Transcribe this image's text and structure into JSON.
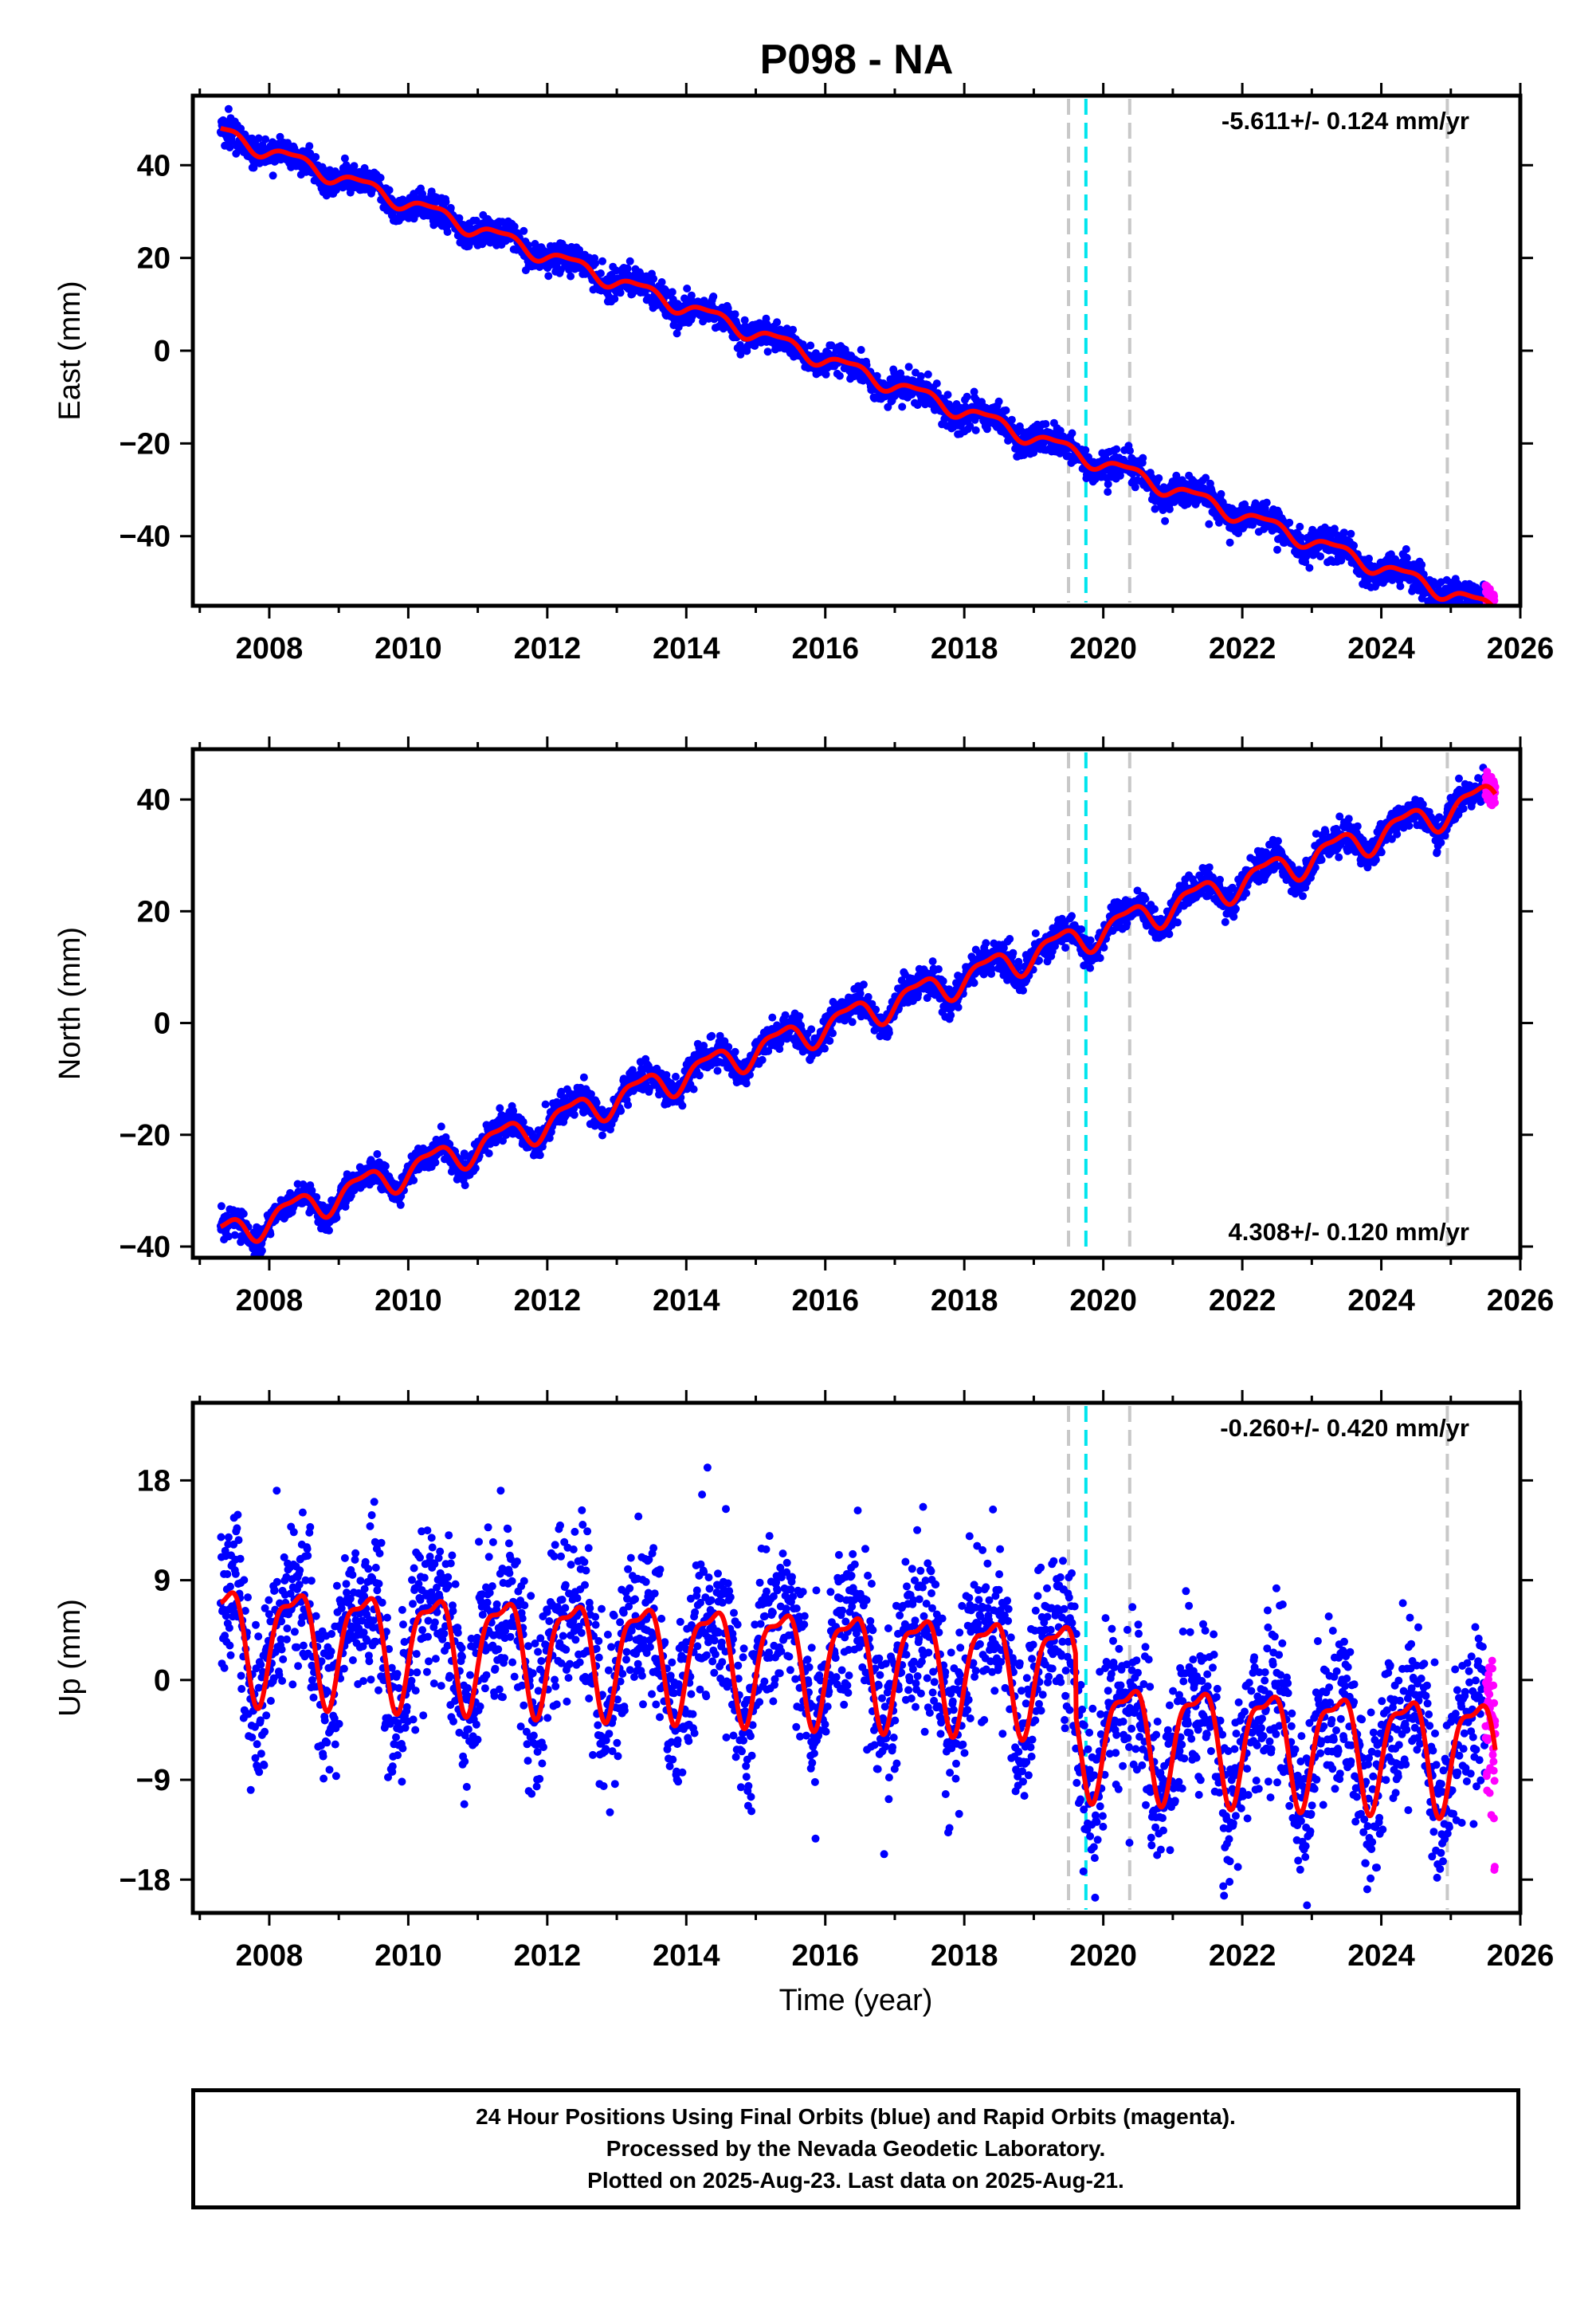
{
  "chart_data": {
    "type": "scatter",
    "title": "P098 - NA",
    "xlabel": "Time (year)",
    "x_ticks": [
      2008,
      2010,
      2012,
      2014,
      2016,
      2018,
      2020,
      2022,
      2024,
      2026
    ],
    "xlim": [
      2006.9,
      2026.0
    ],
    "events": {
      "gray_dashed": [
        2019.5,
        2020.38,
        2024.95
      ],
      "cyan_dashed": [
        2019.75
      ]
    },
    "data_start": 2007.3,
    "data_end": 2025.64,
    "rapid_start": 2025.5,
    "colors": {
      "final_orbits": "#0000ff",
      "rapid_orbits": "#ff00ff",
      "model": "#ff0000",
      "cyan": "#00e5ee",
      "gray": "#c8c8c8"
    },
    "panels": [
      {
        "name": "east",
        "ylabel": "East (mm)",
        "ylim": [
          -55,
          55
        ],
        "y_ticks": [
          40,
          20,
          0,
          -20,
          -40
        ],
        "rate_label": "-5.611+/- 0.124 mm/yr",
        "rate_position": "top-right",
        "rate": -5.611,
        "intercept": 47.0,
        "seasonal_amplitude": 1.6,
        "scatter": 1.6,
        "offsets": [],
        "model_seed": 3
      },
      {
        "name": "north",
        "ylabel": "North (mm)",
        "ylim": [
          -42,
          49
        ],
        "y_ticks": [
          40,
          20,
          0,
          -20,
          -40
        ],
        "rate_label": "4.308+/- 0.120 mm/yr",
        "rate_position": "bottom-right",
        "rate": 4.308,
        "intercept": -38.0,
        "seasonal_amplitude": 2.5,
        "scatter": 1.3,
        "offsets": [],
        "model_seed": 7
      },
      {
        "name": "up",
        "ylabel": "Up (mm)",
        "ylim": [
          -21,
          25
        ],
        "y_ticks": [
          18,
          9,
          0,
          -9,
          -18
        ],
        "rate_label": "-0.260+/- 0.420 mm/yr",
        "rate_position": "top-right",
        "rate": -0.26,
        "intercept": 4.0,
        "seasonal_amplitude": 4.8,
        "scatter": 3.8,
        "offsets": [
          {
            "at": 2019.6,
            "value": -5.5
          }
        ],
        "model_seed": 11
      }
    ]
  },
  "footer": {
    "line1": "24 Hour Positions Using Final Orbits (blue) and Rapid Orbits (magenta).",
    "line2": "Processed by the Nevada Geodetic Laboratory.",
    "line3": "Plotted on 2025-Aug-23. Last data on 2025-Aug-21."
  }
}
